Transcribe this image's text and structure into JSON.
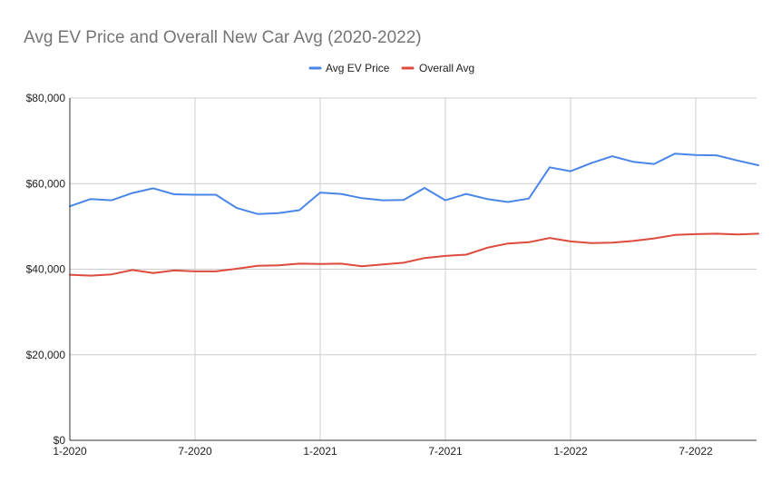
{
  "chart_data": {
    "type": "line",
    "title": "Avg EV Price and Overall New Car Avg (2020-2022)",
    "xlabel": "",
    "ylabel": "",
    "ylim": [
      0,
      80000
    ],
    "yticks": [
      0,
      20000,
      40000,
      60000,
      80000
    ],
    "ytick_labels": [
      "$0",
      "$20,000",
      "$40,000",
      "$60,000",
      "$80,000"
    ],
    "xtick_indices": [
      0,
      6,
      12,
      18,
      24,
      30
    ],
    "xtick_labels": [
      "1-2020",
      "7-2020",
      "1-2021",
      "7-2021",
      "1-2022",
      "7-2022"
    ],
    "x": [
      "1-2020",
      "2-2020",
      "3-2020",
      "4-2020",
      "5-2020",
      "6-2020",
      "7-2020",
      "8-2020",
      "9-2020",
      "10-2020",
      "11-2020",
      "12-2020",
      "1-2021",
      "2-2021",
      "3-2021",
      "4-2021",
      "5-2021",
      "6-2021",
      "7-2021",
      "8-2021",
      "9-2021",
      "10-2021",
      "11-2021",
      "12-2021",
      "1-2022",
      "2-2022",
      "3-2022",
      "4-2022",
      "5-2022",
      "6-2022",
      "7-2022",
      "8-2022",
      "9-2022",
      "10-2022"
    ],
    "grid": true,
    "legend_position": "top",
    "series": [
      {
        "name": "Avg EV Price",
        "color": "#4a86e8",
        "values": [
          54700,
          56400,
          56100,
          57800,
          58900,
          57500,
          57400,
          57400,
          54300,
          52900,
          53100,
          53800,
          57900,
          57600,
          56600,
          56100,
          56200,
          59000,
          56100,
          57600,
          56400,
          55700,
          56500,
          63800,
          62900,
          64800,
          66400,
          65100,
          64600,
          67000,
          66700,
          66600,
          65400,
          64300
        ]
      },
      {
        "name": "Overall Avg",
        "color": "#dd4b3e",
        "values": [
          38700,
          38500,
          38800,
          39800,
          39100,
          39700,
          39500,
          39500,
          40100,
          40800,
          40900,
          41300,
          41200,
          41300,
          40700,
          41100,
          41500,
          42600,
          43100,
          43400,
          45000,
          46000,
          46300,
          47300,
          46500,
          46100,
          46200,
          46600,
          47200,
          48000,
          48200,
          48300,
          48100,
          48300
        ]
      }
    ]
  }
}
